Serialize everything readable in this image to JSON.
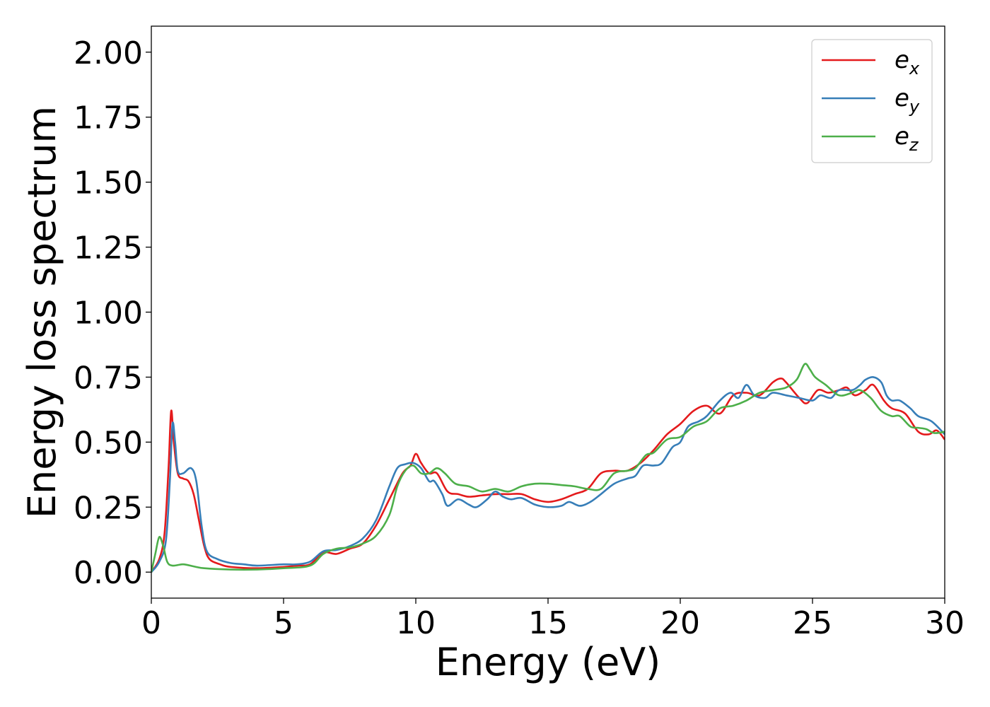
{
  "chart_data": {
    "type": "line",
    "title": "",
    "xlabel": "Energy (eV)",
    "ylabel": "Energy loss spectrum",
    "xlim": [
      0,
      30
    ],
    "ylim": [
      -0.1,
      2.1
    ],
    "xticks": [
      "0",
      "5",
      "10",
      "15",
      "20",
      "25",
      "30"
    ],
    "xtick_values": [
      0,
      5,
      10,
      15,
      20,
      25,
      30
    ],
    "yticks": [
      "0.00",
      "0.25",
      "0.50",
      "0.75",
      "1.00",
      "1.25",
      "1.50",
      "1.75",
      "2.00"
    ],
    "ytick_values": [
      0,
      0.25,
      0.5,
      0.75,
      1.0,
      1.25,
      1.5,
      1.75,
      2.0
    ],
    "grid": false,
    "legend_position": "top-right",
    "series": [
      {
        "name": "e_x",
        "label_base": "e",
        "label_sub": "x",
        "color": "#e41a1c",
        "points": [
          [
            0,
            0.0
          ],
          [
            0.3,
            0.05
          ],
          [
            0.5,
            0.15
          ],
          [
            0.65,
            0.4
          ],
          [
            0.75,
            0.62
          ],
          [
            0.85,
            0.5
          ],
          [
            1.0,
            0.38
          ],
          [
            1.2,
            0.36
          ],
          [
            1.4,
            0.35
          ],
          [
            1.6,
            0.3
          ],
          [
            1.8,
            0.2
          ],
          [
            2.0,
            0.1
          ],
          [
            2.2,
            0.05
          ],
          [
            2.6,
            0.03
          ],
          [
            3.0,
            0.02
          ],
          [
            4.0,
            0.015
          ],
          [
            5.0,
            0.02
          ],
          [
            5.5,
            0.025
          ],
          [
            6.0,
            0.03
          ],
          [
            6.5,
            0.075
          ],
          [
            7.0,
            0.07
          ],
          [
            7.5,
            0.09
          ],
          [
            8.0,
            0.11
          ],
          [
            8.5,
            0.18
          ],
          [
            9.0,
            0.28
          ],
          [
            9.5,
            0.38
          ],
          [
            9.8,
            0.41
          ],
          [
            10.0,
            0.455
          ],
          [
            10.2,
            0.42
          ],
          [
            10.5,
            0.38
          ],
          [
            10.8,
            0.38
          ],
          [
            11.2,
            0.31
          ],
          [
            11.6,
            0.3
          ],
          [
            12.0,
            0.29
          ],
          [
            12.5,
            0.295
          ],
          [
            13.0,
            0.3
          ],
          [
            13.5,
            0.3
          ],
          [
            14.0,
            0.3
          ],
          [
            14.5,
            0.28
          ],
          [
            15.0,
            0.27
          ],
          [
            15.5,
            0.28
          ],
          [
            16.0,
            0.3
          ],
          [
            16.5,
            0.32
          ],
          [
            17.0,
            0.38
          ],
          [
            17.5,
            0.39
          ],
          [
            18.0,
            0.39
          ],
          [
            18.5,
            0.42
          ],
          [
            19.0,
            0.47
          ],
          [
            19.5,
            0.53
          ],
          [
            20.0,
            0.57
          ],
          [
            20.5,
            0.62
          ],
          [
            21.0,
            0.64
          ],
          [
            21.5,
            0.61
          ],
          [
            22.0,
            0.68
          ],
          [
            22.5,
            0.69
          ],
          [
            23.0,
            0.68
          ],
          [
            23.5,
            0.73
          ],
          [
            23.8,
            0.745
          ],
          [
            24.0,
            0.73
          ],
          [
            24.5,
            0.67
          ],
          [
            24.8,
            0.65
          ],
          [
            25.2,
            0.7
          ],
          [
            25.6,
            0.69
          ],
          [
            26.0,
            0.7
          ],
          [
            26.3,
            0.71
          ],
          [
            26.6,
            0.68
          ],
          [
            27.0,
            0.7
          ],
          [
            27.3,
            0.72
          ],
          [
            27.7,
            0.66
          ],
          [
            28.0,
            0.63
          ],
          [
            28.5,
            0.61
          ],
          [
            29.0,
            0.54
          ],
          [
            29.4,
            0.53
          ],
          [
            29.7,
            0.545
          ],
          [
            30.0,
            0.51
          ]
        ]
      },
      {
        "name": "e_y",
        "label_base": "e",
        "label_sub": "y",
        "color": "#377eb8",
        "points": [
          [
            0,
            0.0
          ],
          [
            0.3,
            0.04
          ],
          [
            0.55,
            0.12
          ],
          [
            0.7,
            0.35
          ],
          [
            0.8,
            0.57
          ],
          [
            0.9,
            0.5
          ],
          [
            1.0,
            0.39
          ],
          [
            1.2,
            0.38
          ],
          [
            1.5,
            0.4
          ],
          [
            1.7,
            0.35
          ],
          [
            1.9,
            0.18
          ],
          [
            2.1,
            0.08
          ],
          [
            2.5,
            0.05
          ],
          [
            3.0,
            0.035
          ],
          [
            3.5,
            0.03
          ],
          [
            4.0,
            0.025
          ],
          [
            5.0,
            0.03
          ],
          [
            5.5,
            0.03
          ],
          [
            6.0,
            0.04
          ],
          [
            6.5,
            0.08
          ],
          [
            7.0,
            0.085
          ],
          [
            7.5,
            0.1
          ],
          [
            8.0,
            0.13
          ],
          [
            8.5,
            0.2
          ],
          [
            9.0,
            0.33
          ],
          [
            9.3,
            0.4
          ],
          [
            9.6,
            0.415
          ],
          [
            9.9,
            0.42
          ],
          [
            10.2,
            0.4
          ],
          [
            10.5,
            0.35
          ],
          [
            10.7,
            0.35
          ],
          [
            11.0,
            0.3
          ],
          [
            11.2,
            0.255
          ],
          [
            11.6,
            0.28
          ],
          [
            12.0,
            0.26
          ],
          [
            12.3,
            0.25
          ],
          [
            12.7,
            0.28
          ],
          [
            13.0,
            0.31
          ],
          [
            13.3,
            0.29
          ],
          [
            13.6,
            0.28
          ],
          [
            14.0,
            0.285
          ],
          [
            14.5,
            0.26
          ],
          [
            15.0,
            0.25
          ],
          [
            15.5,
            0.255
          ],
          [
            15.8,
            0.27
          ],
          [
            16.2,
            0.255
          ],
          [
            16.6,
            0.27
          ],
          [
            17.0,
            0.3
          ],
          [
            17.5,
            0.34
          ],
          [
            18.0,
            0.36
          ],
          [
            18.3,
            0.37
          ],
          [
            18.6,
            0.41
          ],
          [
            19.0,
            0.41
          ],
          [
            19.3,
            0.42
          ],
          [
            19.7,
            0.48
          ],
          [
            20.0,
            0.5
          ],
          [
            20.3,
            0.56
          ],
          [
            20.7,
            0.58
          ],
          [
            21.0,
            0.6
          ],
          [
            21.5,
            0.66
          ],
          [
            21.9,
            0.69
          ],
          [
            22.2,
            0.67
          ],
          [
            22.5,
            0.72
          ],
          [
            22.8,
            0.68
          ],
          [
            23.2,
            0.67
          ],
          [
            23.5,
            0.69
          ],
          [
            24.0,
            0.68
          ],
          [
            24.5,
            0.67
          ],
          [
            25.0,
            0.66
          ],
          [
            25.3,
            0.68
          ],
          [
            25.7,
            0.67
          ],
          [
            26.0,
            0.7
          ],
          [
            26.5,
            0.7
          ],
          [
            26.8,
            0.72
          ],
          [
            27.0,
            0.74
          ],
          [
            27.3,
            0.75
          ],
          [
            27.6,
            0.73
          ],
          [
            27.8,
            0.68
          ],
          [
            28.0,
            0.66
          ],
          [
            28.3,
            0.66
          ],
          [
            28.7,
            0.63
          ],
          [
            29.0,
            0.6
          ],
          [
            29.5,
            0.58
          ],
          [
            30.0,
            0.53
          ]
        ]
      },
      {
        "name": "e_z",
        "label_base": "e",
        "label_sub": "z",
        "color": "#4daf4a",
        "points": [
          [
            0,
            0.0
          ],
          [
            0.15,
            0.07
          ],
          [
            0.3,
            0.135
          ],
          [
            0.45,
            0.1
          ],
          [
            0.6,
            0.04
          ],
          [
            0.8,
            0.025
          ],
          [
            1.2,
            0.03
          ],
          [
            1.6,
            0.022
          ],
          [
            2.0,
            0.015
          ],
          [
            3.0,
            0.01
          ],
          [
            4.0,
            0.01
          ],
          [
            5.0,
            0.015
          ],
          [
            6.0,
            0.025
          ],
          [
            6.5,
            0.07
          ],
          [
            7.0,
            0.09
          ],
          [
            7.5,
            0.095
          ],
          [
            8.0,
            0.11
          ],
          [
            8.5,
            0.14
          ],
          [
            9.0,
            0.22
          ],
          [
            9.3,
            0.33
          ],
          [
            9.6,
            0.39
          ],
          [
            9.9,
            0.41
          ],
          [
            10.2,
            0.38
          ],
          [
            10.5,
            0.38
          ],
          [
            10.8,
            0.4
          ],
          [
            11.1,
            0.38
          ],
          [
            11.5,
            0.34
          ],
          [
            12.0,
            0.33
          ],
          [
            12.5,
            0.31
          ],
          [
            13.0,
            0.32
          ],
          [
            13.5,
            0.31
          ],
          [
            14.0,
            0.33
          ],
          [
            14.5,
            0.34
          ],
          [
            15.0,
            0.34
          ],
          [
            15.5,
            0.335
          ],
          [
            16.0,
            0.33
          ],
          [
            16.5,
            0.32
          ],
          [
            17.0,
            0.32
          ],
          [
            17.5,
            0.38
          ],
          [
            18.0,
            0.39
          ],
          [
            18.3,
            0.4
          ],
          [
            18.7,
            0.45
          ],
          [
            19.0,
            0.46
          ],
          [
            19.5,
            0.51
          ],
          [
            20.0,
            0.52
          ],
          [
            20.5,
            0.56
          ],
          [
            21.0,
            0.58
          ],
          [
            21.5,
            0.63
          ],
          [
            22.0,
            0.64
          ],
          [
            22.5,
            0.66
          ],
          [
            23.0,
            0.69
          ],
          [
            23.5,
            0.7
          ],
          [
            24.0,
            0.71
          ],
          [
            24.4,
            0.74
          ],
          [
            24.7,
            0.8
          ],
          [
            24.9,
            0.78
          ],
          [
            25.1,
            0.75
          ],
          [
            25.5,
            0.72
          ],
          [
            26.0,
            0.68
          ],
          [
            26.5,
            0.69
          ],
          [
            26.8,
            0.7
          ],
          [
            27.2,
            0.67
          ],
          [
            27.6,
            0.62
          ],
          [
            28.0,
            0.6
          ],
          [
            28.3,
            0.6
          ],
          [
            28.7,
            0.56
          ],
          [
            29.0,
            0.555
          ],
          [
            29.3,
            0.55
          ],
          [
            29.6,
            0.535
          ],
          [
            30.0,
            0.54
          ]
        ]
      }
    ]
  }
}
